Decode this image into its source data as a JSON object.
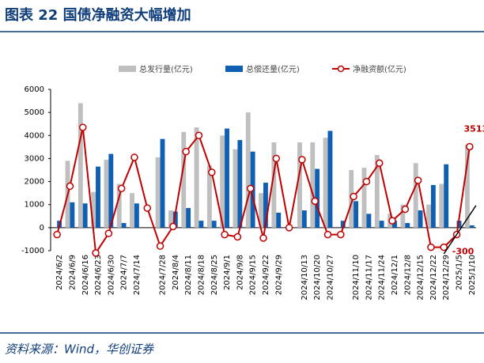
{
  "header": {
    "title": "图表 22 国债净融资大幅增加"
  },
  "chart_data": {
    "type": "bar-line",
    "categories": [
      "2024/6/2",
      "2024/6/9",
      "2024/6/16",
      "2024/6/23",
      "2024/6/30",
      "2024/7/7",
      "2024/7/14",
      null,
      "2024/7/28",
      "2024/8/4",
      "2024/8/11",
      "2024/8/18",
      "2024/8/25",
      "2024/9/1",
      "2024/9/8",
      "2024/9/15",
      "2024/9/22",
      "2024/9/29",
      null,
      "2024/10/13",
      "2024/10/20",
      "2024/10/27",
      null,
      "2024/11/10",
      "2024/11/17",
      "2024/11/24",
      "2024/12/1",
      "2024/12/8",
      "2024/12/15",
      "2024/12/22",
      "2024/12/29",
      "2025/1/5",
      "2025/1/10"
    ],
    "series": [
      {
        "name": "总发行量(亿元)",
        "color": "#bfbfbf",
        "kind": "bar",
        "values": [
          0,
          2900,
          5400,
          1550,
          2950,
          1900,
          1500,
          0,
          3050,
          750,
          4150,
          4350,
          2700,
          4000,
          3400,
          5000,
          1500,
          3700,
          0,
          3700,
          3700,
          3900,
          0,
          2500,
          2600,
          3150,
          600,
          1000,
          2800,
          1000,
          1900,
          0,
          3600
        ]
      },
      {
        "name": "总偿还量(亿元)",
        "color": "#0f5fb4",
        "kind": "bar",
        "values": [
          300,
          1100,
          1050,
          2650,
          3200,
          200,
          1050,
          0,
          3850,
          700,
          850,
          300,
          300,
          4300,
          3800,
          3300,
          1950,
          650,
          0,
          750,
          2550,
          4200,
          300,
          1150,
          600,
          300,
          300,
          200,
          750,
          1850,
          2750,
          300,
          100
        ]
      },
      {
        "name": "净融资额(亿元)",
        "color": "#c00000",
        "kind": "line",
        "values": [
          -300,
          1800,
          4350,
          -1100,
          -250,
          1700,
          3050,
          850,
          -800,
          50,
          3300,
          4000,
          2400,
          -300,
          -400,
          1700,
          -450,
          3000,
          0,
          2950,
          1150,
          -300,
          -300,
          1350,
          2000,
          2800,
          300,
          800,
          2050,
          -850,
          -850,
          -300,
          3513
        ],
        "value_labels": [
          null,
          null,
          null,
          null,
          null,
          null,
          null,
          null,
          null,
          null,
          null,
          null,
          null,
          null,
          null,
          null,
          null,
          null,
          null,
          null,
          null,
          null,
          null,
          null,
          null,
          null,
          null,
          null,
          null,
          null,
          null,
          "-300",
          "3513"
        ]
      }
    ],
    "ylim": [
      -1000,
      6000
    ],
    "yticks": [
      -1000,
      0,
      1000,
      2000,
      3000,
      4000,
      5000,
      6000
    ]
  },
  "footer": {
    "source": "资料来源：Wind，华创证券"
  }
}
